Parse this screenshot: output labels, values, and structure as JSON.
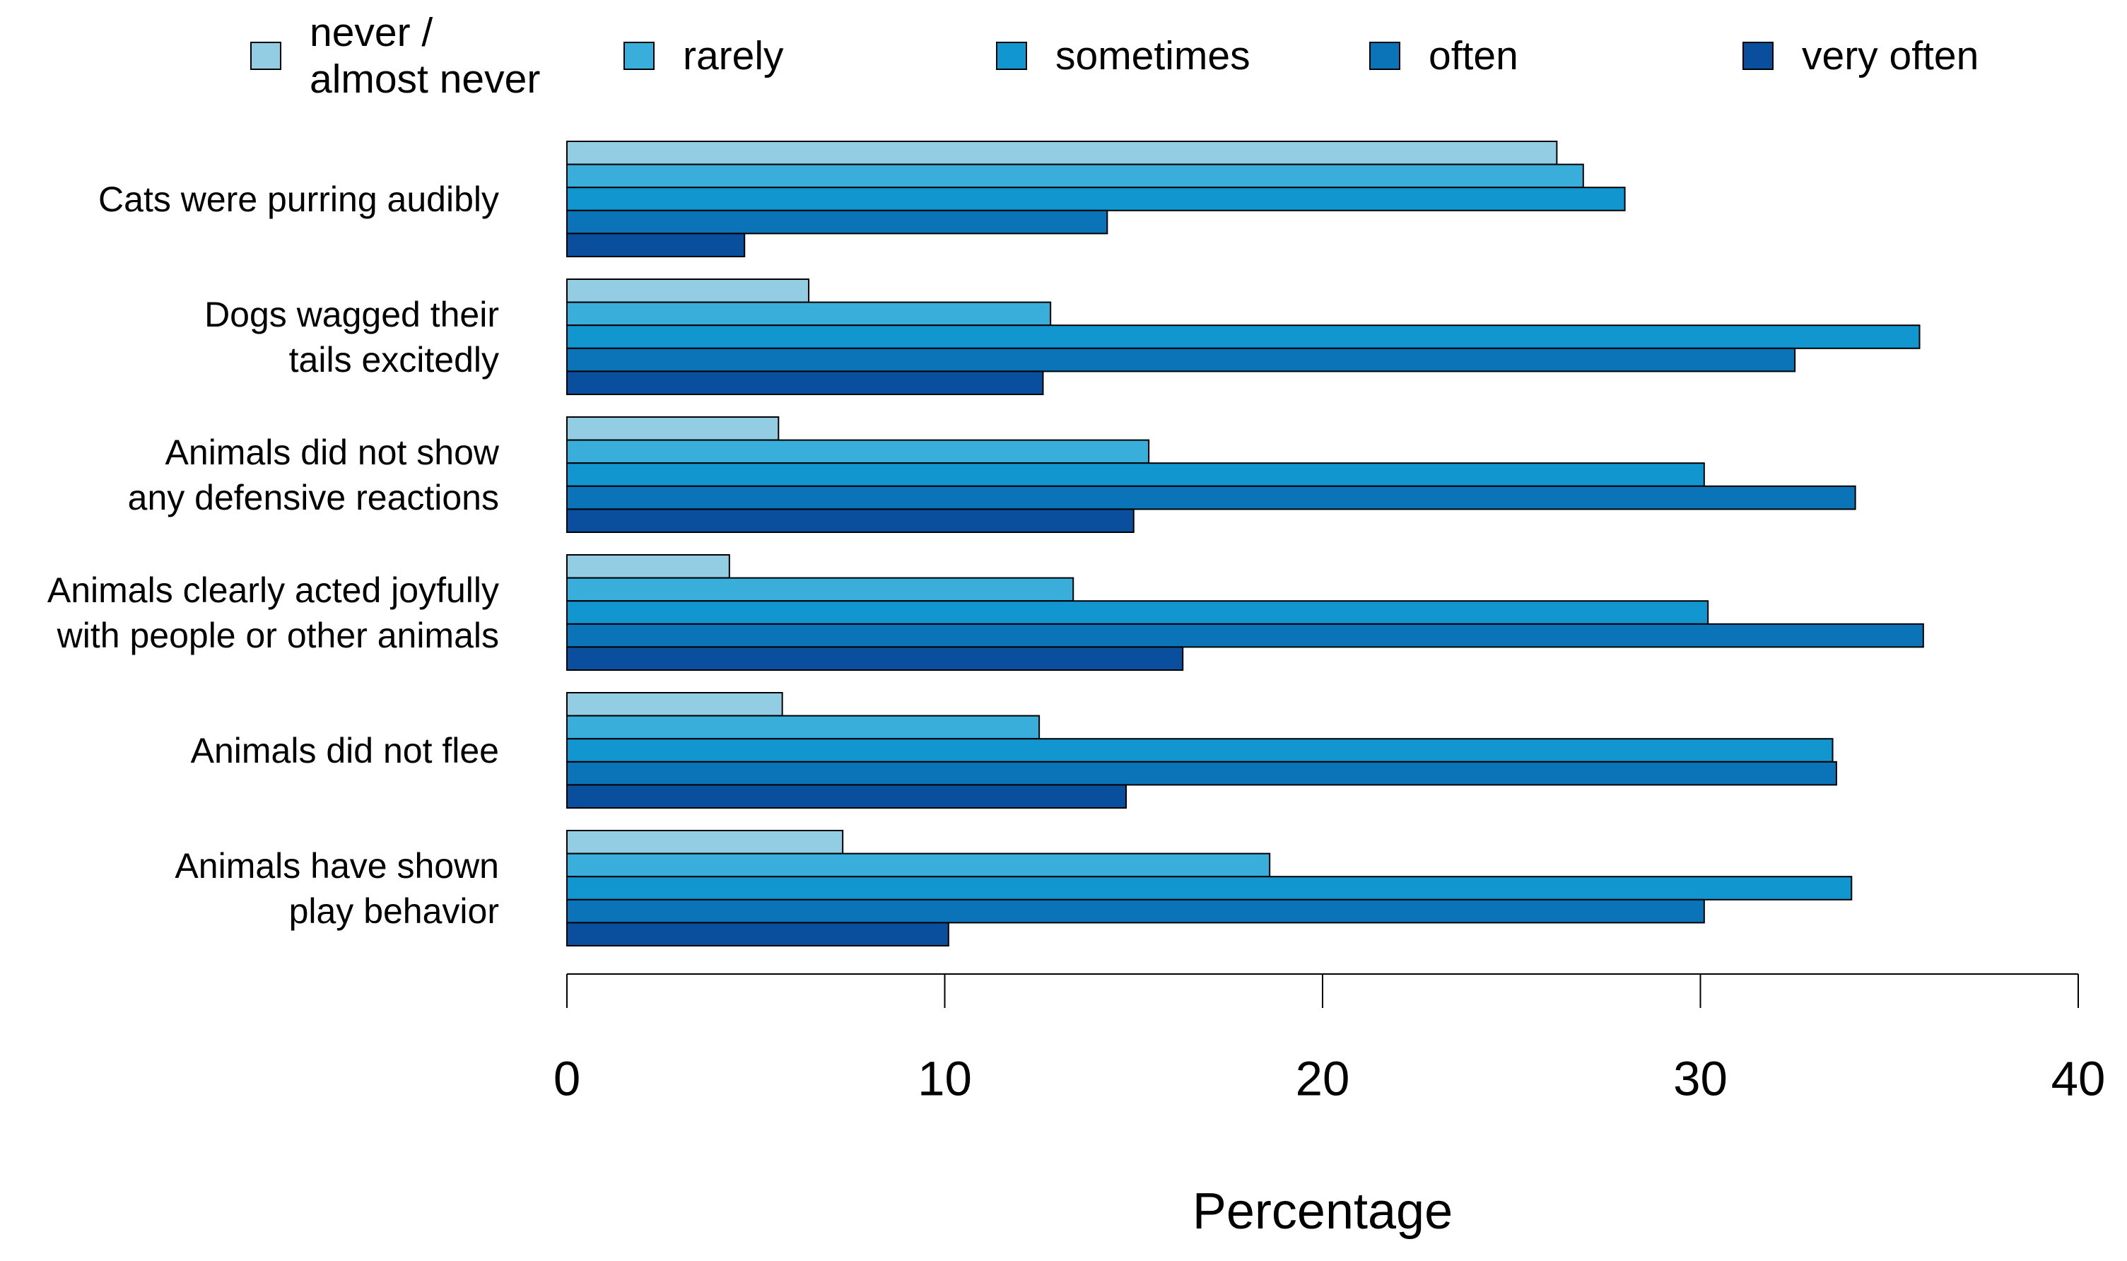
{
  "chart_data": {
    "type": "bar",
    "orientation": "horizontal",
    "x_label": "Percentage",
    "categories": [
      "Cats were purring audibly",
      "Dogs wagged their\ntails excitedly",
      "Animals did not show\nany defensive reactions",
      "Animals clearly acted joyfully\nwith people or other animals",
      "Animals did not flee",
      "Animals have shown\nplay behavior"
    ],
    "series": [
      {
        "name": "never /\nalmost never",
        "color": "#92cde3",
        "values": [
          26.2,
          6.4,
          5.6,
          4.3,
          5.7,
          7.3
        ]
      },
      {
        "name": "rarely",
        "color": "#3aaedb",
        "values": [
          26.9,
          12.8,
          15.4,
          13.4,
          12.5,
          18.6
        ]
      },
      {
        "name": "sometimes",
        "color": "#1296d0",
        "values": [
          28.0,
          35.8,
          30.1,
          30.2,
          33.5,
          34.0
        ]
      },
      {
        "name": "often",
        "color": "#0b73b8",
        "values": [
          14.3,
          32.5,
          34.1,
          35.9,
          33.6,
          30.1
        ]
      },
      {
        "name": "very often",
        "color": "#0a4f9e",
        "values": [
          4.7,
          12.6,
          15.0,
          16.3,
          14.8,
          10.1
        ]
      }
    ],
    "xlim": [
      0,
      40
    ],
    "xticks": [
      0,
      10,
      20,
      30,
      40
    ],
    "grid": false
  }
}
